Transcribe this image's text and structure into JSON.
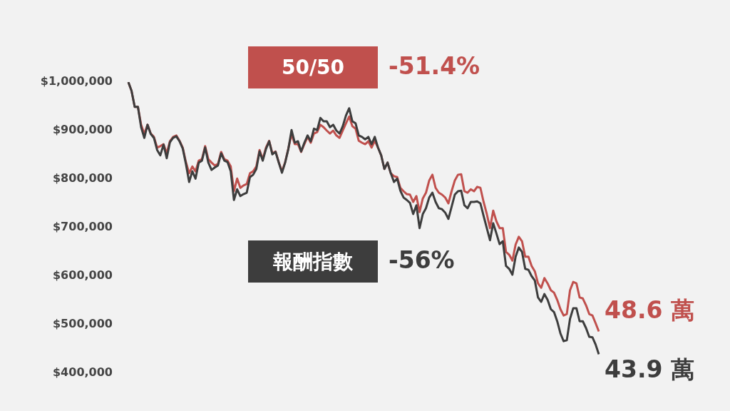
{
  "chart_data": {
    "type": "line",
    "categories": [
      null,
      null,
      null,
      null,
      null,
      null,
      null,
      null,
      null,
      null,
      null,
      null,
      null,
      null,
      null,
      null,
      null,
      null,
      null,
      null,
      null,
      null,
      null,
      null,
      null,
      null,
      null,
      null,
      null,
      null,
      null,
      null,
      null,
      null,
      null,
      null,
      null,
      null,
      null,
      null,
      null,
      null,
      null,
      null,
      null,
      null,
      null,
      null,
      null,
      null,
      null,
      null,
      null,
      null,
      null,
      null,
      null,
      null,
      null,
      null,
      null,
      null,
      null,
      null,
      null,
      null,
      null,
      null,
      null,
      null,
      null,
      null,
      null,
      null,
      null,
      null,
      null,
      null,
      null,
      null,
      null,
      null,
      null,
      null,
      null,
      null,
      null,
      null,
      null,
      null,
      null,
      null,
      null,
      null,
      null,
      null,
      null,
      null,
      null,
      null,
      null,
      null,
      null,
      null,
      null,
      null,
      null,
      null,
      null,
      null,
      null,
      null,
      null,
      null,
      null,
      null,
      null,
      null,
      null,
      null,
      null,
      null,
      null,
      null,
      null,
      null,
      null,
      null,
      null,
      null,
      null,
      null,
      null,
      null,
      null,
      null,
      null,
      null,
      null,
      null,
      null,
      null,
      null,
      null,
      null,
      null,
      null,
      null
    ],
    "series": [
      {
        "name": "報酬指數",
        "color": "#3d3d3d",
        "values": [
          1000000,
          982000,
          949000,
          949000,
          907000,
          885000,
          912000,
          893000,
          885000,
          860000,
          849000,
          871000,
          843000,
          876000,
          885000,
          888000,
          878000,
          863000,
          831000,
          794000,
          816000,
          801000,
          834000,
          838000,
          865000,
          834000,
          819000,
          824000,
          828000,
          853000,
          838000,
          835000,
          816000,
          757000,
          779000,
          765000,
          769000,
          772000,
          804000,
          809000,
          821000,
          857000,
          838000,
          862000,
          878000,
          851000,
          856000,
          834000,
          813000,
          834000,
          862000,
          901000,
          875000,
          878000,
          857000,
          875000,
          890000,
          878000,
          904000,
          901000,
          926000,
          919000,
          919000,
          907000,
          912000,
          900000,
          894000,
          909000,
          931000,
          946000,
          919000,
          915000,
          890000,
          887000,
          882000,
          887000,
          872000,
          887000,
          865000,
          849000,
          821000,
          834000,
          812000,
          794000,
          801000,
          776000,
          762000,
          757000,
          751000,
          728000,
          746000,
          699000,
          728000,
          740000,
          762000,
          772000,
          753000,
          740000,
          738000,
          731000,
          718000,
          743000,
          768000,
          775000,
          776000,
          746000,
          740000,
          753000,
          753000,
          754000,
          750000,
          724000,
          699000,
          674000,
          709000,
          688000,
          666000,
          672000,
          621000,
          615000,
          603000,
          640000,
          659000,
          650000,
          615000,
          613000,
          600000,
          591000,
          556000,
          547000,
          563000,
          551000,
          532000,
          526000,
          507000,
          482000,
          466000,
          468000,
          512000,
          534000,
          534000,
          507000,
          507000,
          493000,
          475000,
          474000,
          459000,
          439000
        ]
      },
      {
        "name": "50/50",
        "color": "#c0504d",
        "values": [
          1000000,
          982000,
          949000,
          949000,
          912000,
          893000,
          912000,
          894000,
          887000,
          865000,
          868000,
          872000,
          853000,
          878000,
          887000,
          890000,
          879000,
          865000,
          835000,
          812000,
          826000,
          816000,
          838000,
          841000,
          868000,
          841000,
          834000,
          828000,
          831000,
          856000,
          841000,
          838000,
          826000,
          775000,
          801000,
          782000,
          787000,
          790000,
          812000,
          816000,
          826000,
          860000,
          841000,
          865000,
          879000,
          853000,
          857000,
          835000,
          816000,
          835000,
          863000,
          893000,
          872000,
          872000,
          856000,
          872000,
          887000,
          875000,
          894000,
          897000,
          912000,
          907000,
          900000,
          894000,
          900000,
          890000,
          885000,
          900000,
          915000,
          929000,
          909000,
          904000,
          879000,
          875000,
          872000,
          878000,
          865000,
          879000,
          865000,
          849000,
          821000,
          834000,
          812000,
          806000,
          804000,
          782000,
          775000,
          769000,
          768000,
          753000,
          765000,
          732000,
          760000,
          772000,
          797000,
          809000,
          782000,
          772000,
          768000,
          762000,
          750000,
          775000,
          797000,
          809000,
          810000,
          775000,
          772000,
          779000,
          775000,
          784000,
          782000,
          753000,
          728000,
          699000,
          735000,
          713000,
          699000,
          699000,
          650000,
          644000,
          632000,
          665000,
          681000,
          672000,
          640000,
          640000,
          621000,
          610000,
          585000,
          576000,
          596000,
          585000,
          571000,
          566000,
          551000,
          532000,
          519000,
          522000,
          571000,
          588000,
          585000,
          556000,
          554000,
          540000,
          522000,
          519000,
          503000,
          486000
        ]
      }
    ],
    "ylim": [
      400000,
      1000000
    ],
    "yticks": [
      {
        "value": 400000,
        "label": "$400,000"
      },
      {
        "value": 500000,
        "label": "$500,000"
      },
      {
        "value": 600000,
        "label": "$600,000"
      },
      {
        "value": 700000,
        "label": "$700,000"
      },
      {
        "value": 800000,
        "label": "$800,000"
      },
      {
        "value": 900000,
        "label": "$900,000"
      },
      {
        "value": 1000000,
        "label": "$1,000,000"
      }
    ],
    "tick_labels": "y",
    "grid": false,
    "legend": "top",
    "marker": "none",
    "line_style": "solid",
    "annotations": [
      "-56%",
      "-51.4%",
      "43.9 萬",
      "48.6 萬"
    ]
  }
}
